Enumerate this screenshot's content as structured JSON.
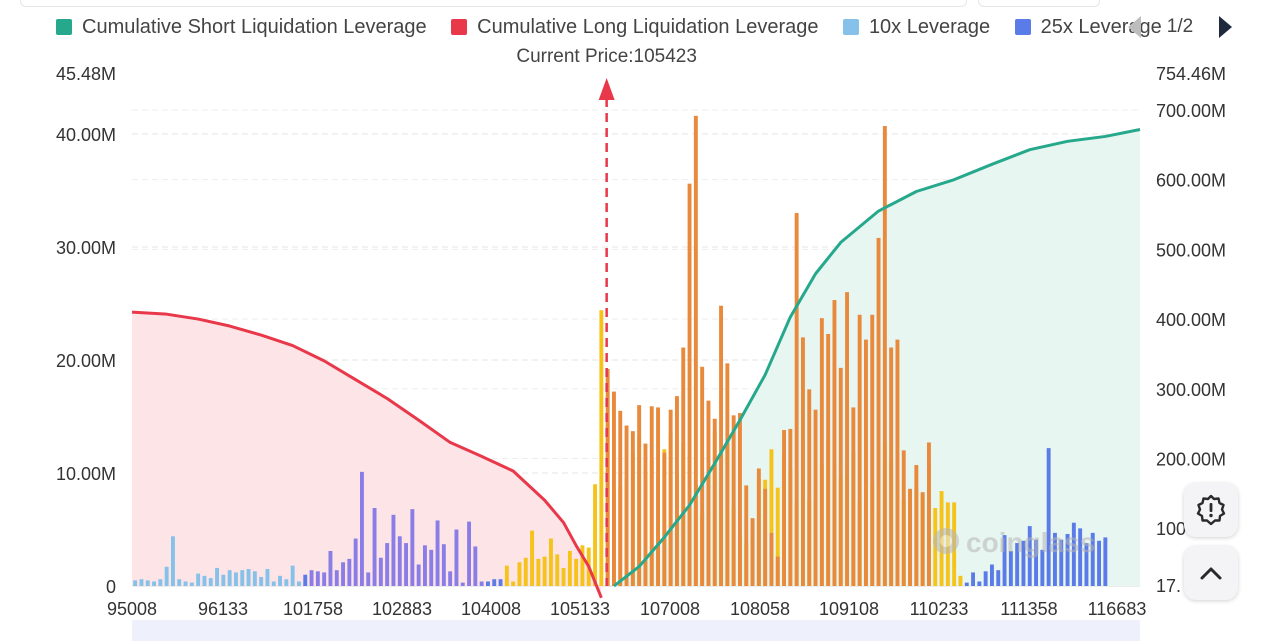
{
  "legend": {
    "items": [
      {
        "label": "Cumulative Short Liquidation Leverage",
        "color": "#26a88c"
      },
      {
        "label": "Cumulative Long Liquidation Leverage",
        "color": "#e8384a"
      },
      {
        "label": "10x Leverage",
        "color": "#86c1ea"
      },
      {
        "label": "25x Leverage",
        "color": "#5b7be8"
      }
    ],
    "page": "1/2"
  },
  "watermark": "coinglass",
  "colors": {
    "short_cumulative": "#26a88c",
    "long_cumulative": "#e8384a",
    "short_fill": "#e7f6f1",
    "long_fill": "#fde5e7",
    "leverage_10x": "#86c1ea",
    "leverage_25x": "#5b7be8",
    "leverage_50x": "#8a7ee6",
    "leverage_yellow": "#f5c31a",
    "leverage_orange": "#e8893c",
    "price_marker": "#e8384a"
  },
  "icons": {
    "settings": "gear-icon",
    "scroll_top": "chevron-up-icon",
    "prev": "triangle-left-icon",
    "next": "triangle-right-icon"
  },
  "chart_data": {
    "type": "bar",
    "annotation": "Current Price:105423",
    "current_price_index": 75,
    "bar_count": 160,
    "left_axis": {
      "ticks": [
        0,
        10000000,
        20000000,
        30000000,
        40000000
      ],
      "tick_labels": [
        "0",
        "10.00M",
        "20.00M",
        "30.00M",
        "40.00M"
      ],
      "max": 45480000,
      "max_label": "45.48M"
    },
    "right_axis": {
      "ticks": [
        200000000,
        300000000,
        400000000,
        500000000,
        600000000,
        700000000
      ],
      "tick_labels": [
        "200.00M",
        "300.00M",
        "400.00M",
        "500.00M",
        "600.00M",
        "700.00M"
      ],
      "max": 754460000,
      "max_label": "754.46M",
      "min": 17000000,
      "min_label": "17.",
      "extra_label": "100"
    },
    "x_tick_labels": [
      "95008",
      "96133",
      "101758",
      "102883",
      "104008",
      "105133",
      "107008",
      "108058",
      "109108",
      "110233",
      "111358",
      "116683"
    ],
    "bars": [
      {
        "v": 0.5,
        "c": "b10"
      },
      {
        "v": 0.6,
        "c": "b10"
      },
      {
        "v": 0.5,
        "c": "b10"
      },
      {
        "v": 0.4,
        "c": "b10"
      },
      {
        "v": 0.6,
        "c": "b10"
      },
      {
        "v": 1.7,
        "c": "b10"
      },
      {
        "v": 4.4,
        "c": "b10"
      },
      {
        "v": 0.6,
        "c": "b10"
      },
      {
        "v": 0.4,
        "c": "b10"
      },
      {
        "v": 0.3,
        "c": "b10"
      },
      {
        "v": 1.1,
        "c": "b10"
      },
      {
        "v": 0.9,
        "c": "b10"
      },
      {
        "v": 0.7,
        "c": "b10"
      },
      {
        "v": 1.6,
        "c": "b10"
      },
      {
        "v": 1.0,
        "c": "b10"
      },
      {
        "v": 1.4,
        "c": "b10"
      },
      {
        "v": 1.2,
        "c": "b10"
      },
      {
        "v": 1.4,
        "c": "b10"
      },
      {
        "v": 1.5,
        "c": "b10"
      },
      {
        "v": 1.3,
        "c": "b10"
      },
      {
        "v": 0.8,
        "c": "b10"
      },
      {
        "v": 1.5,
        "c": "b10"
      },
      {
        "v": 0.4,
        "c": "b10"
      },
      {
        "v": 0.9,
        "c": "b10"
      },
      {
        "v": 0.6,
        "c": "b10"
      },
      {
        "v": 1.8,
        "c": "b10"
      },
      {
        "v": 0.4,
        "c": "b10"
      },
      {
        "v": 1.0,
        "c": "b25"
      },
      {
        "v": 1.4,
        "c": "b50"
      },
      {
        "v": 1.3,
        "c": "b50"
      },
      {
        "v": 1.2,
        "c": "b50"
      },
      {
        "v": 3.1,
        "c": "b50"
      },
      {
        "v": 1.4,
        "c": "b50"
      },
      {
        "v": 2.1,
        "c": "b50"
      },
      {
        "v": 2.4,
        "c": "b50"
      },
      {
        "v": 4.2,
        "c": "b50"
      },
      {
        "v": 10.1,
        "c": "b50"
      },
      {
        "v": 1.2,
        "c": "b50"
      },
      {
        "v": 6.9,
        "c": "b50"
      },
      {
        "v": 2.5,
        "c": "b50"
      },
      {
        "v": 3.8,
        "c": "b50"
      },
      {
        "v": 6.3,
        "c": "b50"
      },
      {
        "v": 4.4,
        "c": "b50"
      },
      {
        "v": 3.8,
        "c": "b50"
      },
      {
        "v": 6.8,
        "c": "b50"
      },
      {
        "v": 1.9,
        "c": "b50"
      },
      {
        "v": 3.6,
        "c": "b50"
      },
      {
        "v": 3.2,
        "c": "b50"
      },
      {
        "v": 5.8,
        "c": "b50"
      },
      {
        "v": 3.7,
        "c": "b50"
      },
      {
        "v": 1.3,
        "c": "b50"
      },
      {
        "v": 5.0,
        "c": "b50"
      },
      {
        "v": 0.3,
        "c": "b50"
      },
      {
        "v": 5.7,
        "c": "b50"
      },
      {
        "v": 3.5,
        "c": "b50"
      },
      {
        "v": 0.4,
        "c": "b50"
      },
      {
        "v": 0.4,
        "c": "b25"
      },
      {
        "v": 0.6,
        "c": "b25"
      },
      {
        "v": 0.6,
        "c": "b25"
      },
      {
        "v": 1.8,
        "c": "y"
      },
      {
        "v": 0.4,
        "c": "y"
      },
      {
        "v": 2.1,
        "c": "y"
      },
      {
        "v": 2.5,
        "c": "y"
      },
      {
        "v": 4.9,
        "c": "y"
      },
      {
        "v": 2.4,
        "c": "y"
      },
      {
        "v": 2.6,
        "c": "y"
      },
      {
        "v": 4.2,
        "c": "y"
      },
      {
        "v": 2.8,
        "c": "y"
      },
      {
        "v": 1.6,
        "c": "y"
      },
      {
        "v": 3.1,
        "c": "y"
      },
      {
        "v": 2.4,
        "c": "y"
      },
      {
        "v": 3.6,
        "c": "y"
      },
      {
        "v": 3.4,
        "c": "y"
      },
      {
        "v": 9.0,
        "c": "y"
      },
      {
        "v": 24.4,
        "c": "y"
      },
      {
        "v": 14.2,
        "c": "y"
      },
      {
        "v": 8.5,
        "c": "y"
      },
      {
        "v": 8.8,
        "c": "y"
      },
      {
        "v": 9.5,
        "c": "y"
      },
      {
        "v": 11.9,
        "c": "y"
      },
      {
        "v": 13.3,
        "c": "y"
      },
      {
        "v": 10.1,
        "c": "y"
      },
      {
        "v": 11.1,
        "c": "y"
      },
      {
        "v": 9.6,
        "c": "y"
      },
      {
        "v": 12.1,
        "c": "y"
      },
      {
        "v": 13.5,
        "c": "y"
      },
      {
        "v": 10.0,
        "c": "y"
      },
      {
        "v": 12.7,
        "c": "y"
      },
      {
        "v": 11.5,
        "c": "y"
      },
      {
        "v": 9.0,
        "c": "y"
      },
      {
        "v": 6.3,
        "c": "y"
      },
      {
        "v": 11.2,
        "c": "y"
      },
      {
        "v": 13.7,
        "c": "y"
      },
      {
        "v": 8.6,
        "c": "y"
      },
      {
        "v": 12.7,
        "c": "y"
      },
      {
        "v": 7.0,
        "c": "y"
      },
      {
        "v": 4.6,
        "c": "y"
      },
      {
        "v": 3.8,
        "c": "y"
      },
      {
        "v": 5.4,
        "c": "y"
      },
      {
        "v": 9.5,
        "c": "y"
      },
      {
        "v": 9.4,
        "c": "y"
      },
      {
        "v": 12.1,
        "c": "y"
      },
      {
        "v": 8.7,
        "c": "y"
      },
      {
        "v": 11.8,
        "c": "y"
      },
      {
        "v": 10.3,
        "c": "y"
      },
      {
        "v": 7.4,
        "c": "y"
      },
      {
        "v": 13.1,
        "c": "y"
      },
      {
        "v": 7.7,
        "c": "y"
      },
      {
        "v": 7.3,
        "c": "y"
      },
      {
        "v": 10.8,
        "c": "y"
      },
      {
        "v": 13.0,
        "c": "y"
      },
      {
        "v": 11.0,
        "c": "y"
      },
      {
        "v": 9.6,
        "c": "y"
      },
      {
        "v": 10.4,
        "c": "y"
      },
      {
        "v": 11.9,
        "c": "y"
      },
      {
        "v": 7.5,
        "c": "y"
      },
      {
        "v": 12.5,
        "c": "y"
      },
      {
        "v": 9.2,
        "c": "y"
      },
      {
        "v": 6.6,
        "c": "y"
      },
      {
        "v": 12.5,
        "c": "y"
      },
      {
        "v": 11.3,
        "c": "y"
      },
      {
        "v": 9.4,
        "c": "y"
      },
      {
        "v": 7.7,
        "c": "y"
      },
      {
        "v": 8.3,
        "c": "y"
      },
      {
        "v": 8.6,
        "c": "y"
      },
      {
        "v": 8.1,
        "c": "y"
      },
      {
        "v": 11.1,
        "c": "y"
      },
      {
        "v": 6.9,
        "c": "y"
      },
      {
        "v": 8.4,
        "c": "y"
      },
      {
        "v": 7.4,
        "c": "y"
      },
      {
        "v": 7.4,
        "c": "y"
      },
      {
        "v": 0.9,
        "c": "y"
      },
      {
        "v": 0.3,
        "c": "b25"
      },
      {
        "v": 1.2,
        "c": "b25"
      },
      {
        "v": 0.4,
        "c": "b25"
      },
      {
        "v": 1.3,
        "c": "b25"
      },
      {
        "v": 1.9,
        "c": "b25"
      },
      {
        "v": 1.4,
        "c": "b25"
      },
      {
        "v": 4.5,
        "c": "b25"
      },
      {
        "v": 3.1,
        "c": "b25"
      },
      {
        "v": 3.8,
        "c": "b25"
      },
      {
        "v": 4.0,
        "c": "b25"
      },
      {
        "v": 5.3,
        "c": "b25"
      },
      {
        "v": 4.1,
        "c": "b25"
      },
      {
        "v": 3.2,
        "c": "b25"
      },
      {
        "v": 12.2,
        "c": "b25"
      },
      {
        "v": 4.7,
        "c": "b25"
      },
      {
        "v": 4.1,
        "c": "b25"
      },
      {
        "v": 4.6,
        "c": "b25"
      },
      {
        "v": 5.6,
        "c": "b25"
      },
      {
        "v": 5.1,
        "c": "b25"
      },
      {
        "v": 3.8,
        "c": "b25"
      },
      {
        "v": 4.7,
        "c": "b25"
      },
      {
        "v": 4.0,
        "c": "b25"
      },
      {
        "v": 4.3,
        "c": "b25"
      }
    ],
    "orange_overlay": [
      {
        "i": 74,
        "v": 0
      },
      {
        "i": 75,
        "v": 19.2
      },
      {
        "i": 76,
        "v": 17.2
      },
      {
        "i": 77,
        "v": 15.5
      },
      {
        "i": 78,
        "v": 14.2
      },
      {
        "i": 79,
        "v": 13.7
      },
      {
        "i": 80,
        "v": 16.0
      },
      {
        "i": 81,
        "v": 12.6
      },
      {
        "i": 82,
        "v": 15.9
      },
      {
        "i": 83,
        "v": 15.8
      },
      {
        "i": 84,
        "v": 11.8
      },
      {
        "i": 85,
        "v": 15.6
      },
      {
        "i": 86,
        "v": 16.8
      },
      {
        "i": 87,
        "v": 21.1
      },
      {
        "i": 88,
        "v": 35.6
      },
      {
        "i": 89,
        "v": 41.6
      },
      {
        "i": 90,
        "v": 19.4
      },
      {
        "i": 91,
        "v": 16.4
      },
      {
        "i": 92,
        "v": 14.8
      },
      {
        "i": 93,
        "v": 24.8
      },
      {
        "i": 94,
        "v": 19.7
      },
      {
        "i": 95,
        "v": 15.1
      },
      {
        "i": 96,
        "v": 15.3
      },
      {
        "i": 97,
        "v": 8.9
      },
      {
        "i": 98,
        "v": 6.0
      },
      {
        "i": 99,
        "v": 10.4
      },
      {
        "i": 100,
        "v": 8.6
      },
      {
        "i": 101,
        "v": 4.7
      },
      {
        "i": 102,
        "v": 2.6
      },
      {
        "i": 103,
        "v": 13.8
      },
      {
        "i": 104,
        "v": 13.9
      },
      {
        "i": 105,
        "v": 33.0
      },
      {
        "i": 106,
        "v": 22.0
      },
      {
        "i": 107,
        "v": 17.4
      },
      {
        "i": 108,
        "v": 15.6
      },
      {
        "i": 109,
        "v": 23.7
      },
      {
        "i": 110,
        "v": 22.3
      },
      {
        "i": 111,
        "v": 25.3
      },
      {
        "i": 112,
        "v": 19.3
      },
      {
        "i": 113,
        "v": 26.0
      },
      {
        "i": 114,
        "v": 15.8
      },
      {
        "i": 115,
        "v": 24.0
      },
      {
        "i": 116,
        "v": 21.8
      },
      {
        "i": 117,
        "v": 24.0
      },
      {
        "i": 118,
        "v": 30.8
      },
      {
        "i": 119,
        "v": 40.7
      },
      {
        "i": 120,
        "v": 21.1
      },
      {
        "i": 121,
        "v": 21.8
      },
      {
        "i": 122,
        "v": 12.0
      },
      {
        "i": 123,
        "v": 8.6
      },
      {
        "i": 124,
        "v": 10.7
      },
      {
        "i": 125,
        "v": 8.3
      },
      {
        "i": 126,
        "v": 12.7
      }
    ],
    "long_cumulative_M": [
      {
        "i": 0,
        "v": 410
      },
      {
        "i": 5,
        "v": 407
      },
      {
        "i": 10,
        "v": 400
      },
      {
        "i": 15,
        "v": 390
      },
      {
        "i": 20,
        "v": 377
      },
      {
        "i": 25,
        "v": 362
      },
      {
        "i": 30,
        "v": 340
      },
      {
        "i": 35,
        "v": 313
      },
      {
        "i": 40,
        "v": 286
      },
      {
        "i": 45,
        "v": 255
      },
      {
        "i": 50,
        "v": 223
      },
      {
        "i": 55,
        "v": 203
      },
      {
        "i": 60,
        "v": 182
      },
      {
        "i": 65,
        "v": 140
      },
      {
        "i": 68,
        "v": 108
      },
      {
        "i": 70,
        "v": 75
      },
      {
        "i": 72,
        "v": 45
      },
      {
        "i": 74,
        "v": 0
      }
    ],
    "short_cumulative_M": [
      {
        "i": 76,
        "v": 17
      },
      {
        "i": 80,
        "v": 45
      },
      {
        "i": 84,
        "v": 87
      },
      {
        "i": 88,
        "v": 133
      },
      {
        "i": 92,
        "v": 193
      },
      {
        "i": 96,
        "v": 255
      },
      {
        "i": 100,
        "v": 320
      },
      {
        "i": 104,
        "v": 403
      },
      {
        "i": 108,
        "v": 465
      },
      {
        "i": 112,
        "v": 510
      },
      {
        "i": 118,
        "v": 555
      },
      {
        "i": 124,
        "v": 583
      },
      {
        "i": 130,
        "v": 600
      },
      {
        "i": 136,
        "v": 622
      },
      {
        "i": 142,
        "v": 643
      },
      {
        "i": 148,
        "v": 655
      },
      {
        "i": 154,
        "v": 662
      },
      {
        "i": 159,
        "v": 672
      }
    ]
  }
}
